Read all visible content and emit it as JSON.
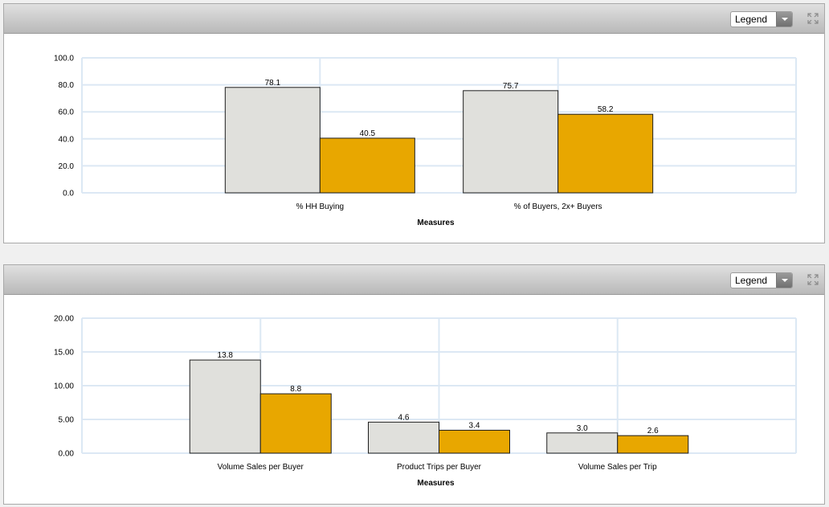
{
  "panels": [
    {
      "legend_label": "Legend",
      "expand_icon": "expand-arrows-icon"
    },
    {
      "legend_label": "Legend",
      "expand_icon": "expand-arrows-icon"
    }
  ],
  "chart_data": [
    {
      "type": "bar",
      "categories": [
        "% HH Buying",
        "% of Buyers, 2x+ Buyers"
      ],
      "series": [
        {
          "values": [
            78.1,
            75.7
          ],
          "color": "#e0e0dc"
        },
        {
          "values": [
            40.5,
            58.2
          ],
          "color": "#e8a700"
        }
      ],
      "value_labels": [
        [
          "78.1",
          "75.7"
        ],
        [
          "40.5",
          "58.2"
        ]
      ],
      "yticks": [
        "0.0",
        "20.0",
        "40.0",
        "60.0",
        "80.0",
        "100.0"
      ],
      "ylim": [
        0,
        100
      ],
      "xlabel": "Measures",
      "grid": true
    },
    {
      "type": "bar",
      "categories": [
        "Volume Sales per Buyer",
        "Product Trips per Buyer",
        "Volume Sales per Trip"
      ],
      "series": [
        {
          "values": [
            13.8,
            4.6,
            3.0
          ],
          "color": "#e0e0dc"
        },
        {
          "values": [
            8.8,
            3.4,
            2.6
          ],
          "color": "#e8a700"
        }
      ],
      "value_labels": [
        [
          "13.8",
          "4.6",
          "3.0"
        ],
        [
          "8.8",
          "3.4",
          "2.6"
        ]
      ],
      "yticks": [
        "0.00",
        "5.00",
        "10.00",
        "15.00",
        "20.00"
      ],
      "ylim": [
        0,
        20
      ],
      "xlabel": "Measures",
      "grid": true
    }
  ]
}
